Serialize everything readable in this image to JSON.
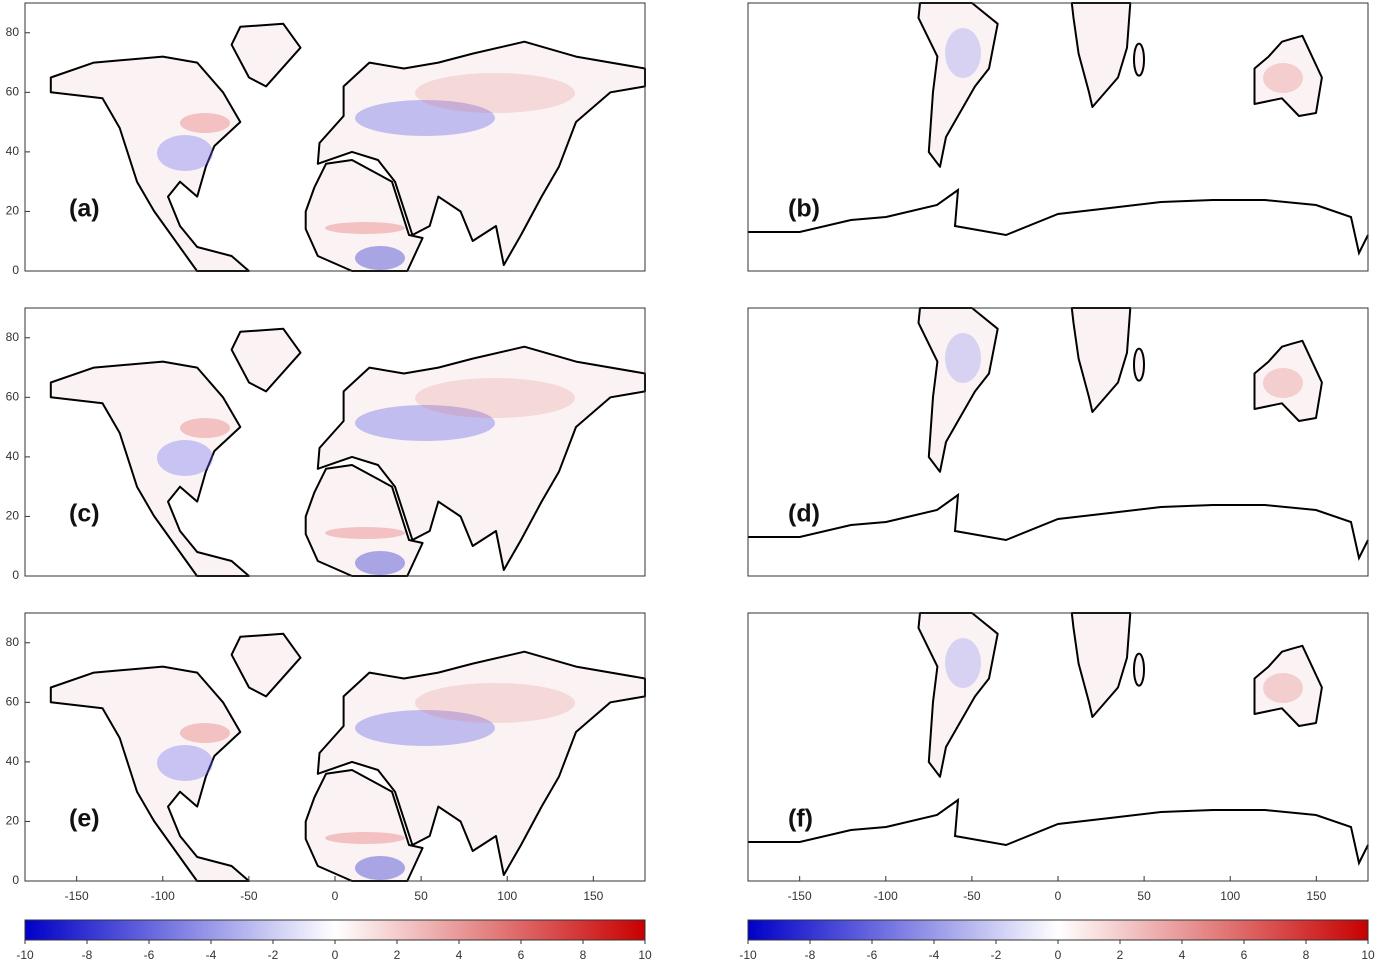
{
  "lon_lim": [
    -180,
    180
  ],
  "lat_lim": [
    0,
    90
  ],
  "panels": [
    {
      "label": "(a)",
      "yticks": [
        0,
        20,
        40,
        60,
        80
      ]
    },
    {
      "label": "(b)"
    },
    {
      "label": "(c)",
      "yticks": [
        0,
        20,
        40,
        60,
        80
      ]
    },
    {
      "label": "(d)"
    },
    {
      "label": "(e)",
      "yticks": [
        0,
        20,
        40,
        60,
        80
      ],
      "xticks": [
        -150,
        -100,
        -50,
        0,
        50,
        100,
        150
      ]
    },
    {
      "label": "(f)",
      "xticks": [
        -150,
        -100,
        -50,
        0,
        50,
        100,
        150
      ]
    }
  ],
  "cmap": [
    "#0000c8",
    "#ffffff",
    "#c80000"
  ],
  "colorbars": [
    {
      "lim": [
        -10,
        10
      ],
      "ticks": [
        -10,
        -8,
        -6,
        -4,
        -2,
        0,
        2,
        4,
        6,
        8,
        10
      ]
    },
    {
      "lim": [
        -10,
        10
      ],
      "ticks": [
        -10,
        -8,
        -6,
        -4,
        -2,
        0,
        2,
        4,
        6,
        8,
        10
      ]
    }
  ]
}
